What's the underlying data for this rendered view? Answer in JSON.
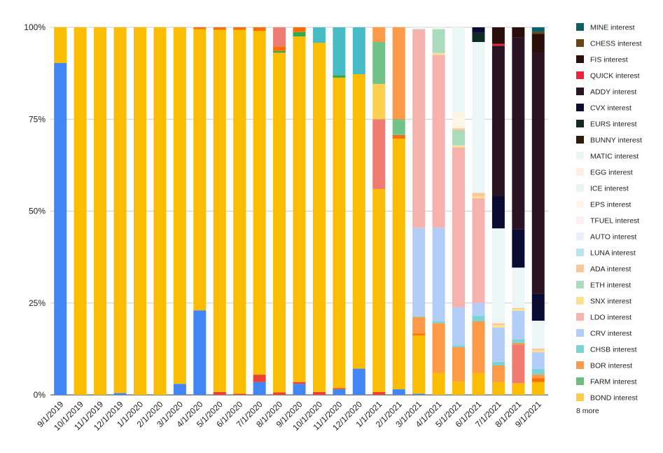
{
  "chart_data": {
    "type": "bar",
    "stacked": "percent",
    "title": "",
    "xlabel": "",
    "ylabel": "",
    "ylim": [
      0,
      100
    ],
    "y_ticks": [
      "0%",
      "25%",
      "50%",
      "75%",
      "100%"
    ],
    "grid": true,
    "legend_position": "right",
    "legend_more": "8 more",
    "categories": [
      "9/1/2019",
      "10/1/2019",
      "11/1/2019",
      "12/1/2019",
      "1/1/2020",
      "2/1/2020",
      "3/1/2020",
      "4/1/2020",
      "5/1/2020",
      "6/1/2020",
      "7/1/2020",
      "8/1/2020",
      "9/1/2020",
      "10/1/2020",
      "11/1/2020",
      "12/1/2020",
      "1/1/2021",
      "2/1/2021",
      "3/1/2021",
      "4/1/2021",
      "5/1/2021",
      "6/1/2021",
      "7/1/2021",
      "8/1/2021",
      "9/1/2021"
    ],
    "legend": [
      {
        "name": "MINE interest",
        "color": "#0f5e66"
      },
      {
        "name": "CHESS interest",
        "color": "#6b4410"
      },
      {
        "name": "FIS interest",
        "color": "#2a0e0a"
      },
      {
        "name": "QUICK interest",
        "color": "#f2213a"
      },
      {
        "name": "ADDY interest",
        "color": "#2a1323"
      },
      {
        "name": "CVX interest",
        "color": "#0a0a33"
      },
      {
        "name": "EURS interest",
        "color": "#0e2a24"
      },
      {
        "name": "BUNNY interest",
        "color": "#2d1a08"
      },
      {
        "name": "MATIC interest",
        "color": "#ebf7f6"
      },
      {
        "name": "EGG interest",
        "color": "#fdeee6"
      },
      {
        "name": "ICE interest",
        "color": "#e8f5ee"
      },
      {
        "name": "EPS interest",
        "color": "#fdf6e6"
      },
      {
        "name": "TFUEL interest",
        "color": "#fdeef0"
      },
      {
        "name": "AUTO interest",
        "color": "#eaf1fd"
      },
      {
        "name": "LUNA interest",
        "color": "#b6e6ec"
      },
      {
        "name": "ADA interest",
        "color": "#fcc797"
      },
      {
        "name": "ETH interest",
        "color": "#abdbbd"
      },
      {
        "name": "SNX interest",
        "color": "#fde18f"
      },
      {
        "name": "LDO interest",
        "color": "#f6b3ae"
      },
      {
        "name": "CRV interest",
        "color": "#b3cdf9"
      },
      {
        "name": "CHSB interest",
        "color": "#7ad3d4"
      },
      {
        "name": "BOR interest",
        "color": "#fd9a48"
      },
      {
        "name": "FARM interest",
        "color": "#6abf7f"
      },
      {
        "name": "BOND interest",
        "color": "#fccc4a"
      }
    ],
    "series": [
      {
        "color": "#4285f4",
        "values": [
          90.3,
          0,
          0,
          0.5,
          0,
          0,
          3,
          23,
          0,
          0,
          3.5,
          0,
          3,
          0,
          1.5,
          6.7,
          0,
          1.5,
          0.3,
          0,
          0,
          0,
          0,
          0,
          0
        ]
      },
      {
        "color": "#ea4335",
        "values": [
          0,
          0,
          0,
          0,
          0,
          0,
          0,
          0,
          0.8,
          0.3,
          2,
          0.7,
          0.5,
          0.8,
          0.3,
          0,
          0.8,
          0,
          0,
          0,
          0,
          0,
          0,
          0,
          0
        ]
      },
      {
        "color": "#fbbc04",
        "values": [
          9.7,
          100,
          100,
          99.5,
          100,
          100,
          97,
          76.5,
          98.5,
          99,
          93.5,
          97.5,
          94,
          95,
          84.5,
          75.3,
          55.2,
          67.5,
          16,
          6,
          3.5,
          6,
          3.5,
          3.2,
          3.5
        ]
      },
      {
        "color": "#34a853",
        "values": [
          0,
          0,
          0,
          0,
          0,
          0,
          0,
          0,
          0,
          0,
          0,
          0.5,
          1.2,
          0,
          0.7,
          0,
          0,
          0,
          0,
          0,
          0,
          0,
          0,
          0,
          0
        ]
      },
      {
        "color": "#ff6d01",
        "values": [
          0,
          0,
          0,
          0,
          0,
          0,
          0,
          0.5,
          0.7,
          0.7,
          1,
          1.3,
          1.3,
          0,
          0,
          0,
          0,
          1,
          0.5,
          0,
          0,
          0,
          0,
          0,
          1
        ]
      },
      {
        "color": "#46bdc6",
        "values": [
          0,
          0,
          0,
          0,
          0,
          0,
          0,
          0,
          0,
          0,
          0,
          0,
          0,
          4.2,
          13,
          12,
          0,
          0.2,
          0,
          0,
          0,
          0,
          0,
          0,
          0
        ]
      },
      {
        "color": "#7baaf7",
        "values": [
          0,
          0,
          0,
          0,
          0,
          0,
          0,
          0,
          0,
          0,
          0,
          0,
          0,
          0,
          0,
          0,
          0,
          0,
          0,
          0,
          0,
          0,
          0,
          0,
          0
        ]
      },
      {
        "color": "#f07b72",
        "values": [
          0,
          0,
          0,
          0,
          0,
          0,
          0,
          0,
          0,
          0,
          0,
          5.5,
          0,
          0,
          0,
          0,
          19,
          0,
          0,
          0,
          0,
          0,
          0,
          10.5,
          0
        ]
      },
      {
        "color": "#fcd04f",
        "values": [
          0,
          0,
          0,
          0,
          0,
          0,
          0,
          0,
          0,
          0,
          0,
          0,
          0,
          0,
          0,
          0,
          9.6,
          0,
          0,
          0,
          0,
          0,
          0,
          0,
          0
        ]
      },
      {
        "color": "#71c287",
        "values": [
          0,
          0,
          0,
          0,
          0,
          0,
          0,
          0,
          0,
          0,
          0,
          0,
          0,
          0,
          0,
          0,
          11.4,
          3.7,
          0,
          0,
          0,
          0,
          0,
          0,
          0
        ]
      },
      {
        "color": "#fccc4a",
        "values": [
          0,
          0,
          0,
          0,
          0,
          0,
          0,
          0,
          0,
          0,
          0,
          0,
          0,
          0,
          0,
          0,
          0,
          0,
          0,
          0,
          0,
          0,
          0,
          0,
          0
        ]
      },
      {
        "color": "#6abf7f",
        "values": [
          0,
          0,
          0,
          0,
          0,
          0,
          0,
          0,
          0,
          0,
          0,
          0,
          0,
          0,
          0,
          0,
          0,
          0.3,
          0,
          0,
          0,
          0,
          0,
          0,
          0
        ]
      },
      {
        "color": "#fd9a48",
        "values": [
          0,
          0,
          0,
          0,
          0,
          0,
          0,
          0,
          0,
          0,
          0,
          0,
          0,
          0,
          0,
          0,
          4,
          24.8,
          4.5,
          13.5,
          9,
          14,
          4.5,
          0.5,
          1
        ]
      },
      {
        "color": "#7ad3d4",
        "values": [
          0,
          0,
          0,
          0,
          0,
          0,
          0,
          0,
          0,
          0,
          0,
          0,
          0,
          0,
          0,
          0,
          0,
          0,
          0.2,
          0.5,
          0.5,
          1.5,
          1,
          1,
          1.5
        ]
      },
      {
        "color": "#b3cdf9",
        "values": [
          0,
          0,
          0,
          0,
          0,
          0,
          0,
          0,
          0,
          0,
          0,
          0,
          0,
          0,
          0,
          0,
          0,
          0,
          24.2,
          25.5,
          10,
          3.5,
          9.3,
          7.8,
          4.5
        ]
      },
      {
        "color": "#f6b3ae",
        "values": [
          0,
          0,
          0,
          0,
          0,
          0,
          0,
          0,
          0,
          0,
          0,
          0,
          0,
          0,
          0,
          0,
          0,
          0,
          54.3,
          47,
          42,
          28.5,
          0,
          0,
          0
        ]
      },
      {
        "color": "#fde18f",
        "values": [
          0,
          0,
          0,
          0,
          0,
          0,
          0,
          0,
          0,
          0,
          0,
          0,
          0,
          0,
          0,
          0,
          0,
          0,
          0,
          0.5,
          0.5,
          0.5,
          0.7,
          0.5,
          0.5
        ]
      },
      {
        "color": "#abdbbd",
        "values": [
          0,
          0,
          0,
          0,
          0,
          0,
          0,
          0,
          0,
          0,
          0,
          0,
          0,
          0,
          0,
          0,
          0,
          0,
          0,
          6.5,
          4,
          0,
          0,
          0,
          0
        ]
      },
      {
        "color": "#fcc797",
        "values": [
          0,
          0,
          0,
          0,
          0,
          0,
          0,
          0,
          0,
          0,
          0,
          0,
          0,
          0,
          0,
          0,
          0,
          0,
          0,
          0,
          0.5,
          1,
          0.5,
          0.3,
          0.5
        ]
      },
      {
        "color": "#b6e6ec",
        "values": [
          0,
          0,
          0,
          0,
          0,
          0,
          0,
          0,
          0,
          0,
          0,
          0,
          0,
          0,
          0,
          0,
          0,
          0,
          0,
          0,
          0,
          0,
          0,
          0,
          0
        ]
      },
      {
        "color": "#eaf1fd",
        "values": [
          0,
          0,
          0,
          0,
          0,
          0,
          0,
          0,
          0,
          0,
          0,
          0,
          0,
          0,
          0,
          0,
          0,
          0,
          0,
          0,
          0,
          0,
          0,
          0,
          0
        ]
      },
      {
        "color": "#fdeef0",
        "values": [
          0,
          0,
          0,
          0,
          0,
          0,
          0,
          0,
          0,
          0,
          0,
          0,
          0,
          0,
          0,
          0,
          0,
          0,
          0,
          0,
          0,
          0,
          0,
          0,
          0
        ]
      },
      {
        "color": "#fdf6e6",
        "values": [
          0,
          0,
          0,
          0,
          0,
          0,
          0,
          0,
          0,
          0,
          0,
          0,
          0,
          0,
          0,
          0,
          0,
          0,
          0,
          0,
          4,
          0,
          0,
          0,
          0
        ]
      },
      {
        "color": "#e8f5ee",
        "values": [
          0,
          0,
          0,
          0,
          0,
          0,
          0,
          0,
          0,
          0,
          0,
          0,
          0,
          0,
          0,
          0,
          0,
          0,
          0,
          0,
          0,
          0,
          0,
          0,
          0
        ]
      },
      {
        "color": "#fdeee6",
        "values": [
          0,
          0,
          0,
          0,
          0,
          0,
          0,
          0,
          0,
          0,
          0,
          0,
          0,
          0,
          0,
          0,
          0,
          0,
          0,
          0,
          0,
          0,
          0,
          0,
          0
        ]
      },
      {
        "color": "#ebf7f6",
        "values": [
          0,
          0,
          0,
          0,
          0,
          0,
          0,
          0,
          0,
          0,
          0,
          0,
          0,
          0,
          0,
          0,
          0,
          0,
          0.5,
          0.5,
          22.5,
          41,
          25.8,
          11,
          7.5
        ]
      },
      {
        "color": "#2d1a08",
        "values": [
          0,
          0,
          0,
          0,
          0,
          0,
          0,
          0,
          0,
          0,
          0,
          0,
          0,
          0,
          0,
          0,
          0,
          0,
          0,
          0,
          0,
          0,
          0,
          0,
          0
        ]
      },
      {
        "color": "#0e2a24",
        "values": [
          0,
          0,
          0,
          0,
          0,
          0,
          0,
          0,
          0,
          0,
          0,
          0,
          0,
          0,
          0,
          0,
          0,
          0,
          0,
          0,
          0,
          2.5,
          0,
          0,
          0
        ]
      },
      {
        "color": "#0a0a33",
        "values": [
          0,
          0,
          0,
          0,
          0,
          0,
          0,
          0,
          0,
          0,
          0,
          0,
          0,
          0,
          0,
          0,
          0,
          0,
          0,
          0,
          0,
          1.5,
          8.7,
          10.5,
          7.3
        ]
      },
      {
        "color": "#2a1323",
        "values": [
          0,
          0,
          0,
          0,
          0,
          0,
          0,
          0,
          0,
          0,
          0,
          0,
          0,
          0,
          0,
          0,
          0,
          0,
          0,
          0,
          0,
          0,
          41,
          52.5,
          65
        ]
      },
      {
        "color": "#f2213a",
        "values": [
          0,
          0,
          0,
          0,
          0,
          0,
          0,
          0,
          0,
          0,
          0,
          0,
          0,
          0,
          0,
          0,
          0,
          0,
          0,
          0,
          0,
          0,
          0.5,
          0,
          0
        ]
      },
      {
        "color": "#2a0e0a",
        "values": [
          0,
          0,
          0,
          0,
          0,
          0,
          0,
          0,
          0,
          0,
          0,
          0,
          0,
          0,
          0,
          0,
          0,
          0,
          0,
          0,
          0,
          0,
          4.5,
          2.7,
          5
        ]
      },
      {
        "color": "#6b4410",
        "values": [
          0,
          0,
          0,
          0,
          0,
          0,
          0,
          0,
          0,
          0,
          0,
          0,
          0,
          0,
          0,
          0,
          0,
          0,
          0,
          0,
          0,
          0,
          0,
          0,
          0.5
        ]
      },
      {
        "color": "#0f5e66",
        "values": [
          0,
          0,
          0,
          0,
          0,
          0,
          0,
          0,
          0,
          0,
          0,
          0,
          0,
          0,
          0,
          0,
          0,
          0,
          0,
          0,
          0,
          0,
          0,
          0,
          1.3
        ]
      }
    ]
  }
}
